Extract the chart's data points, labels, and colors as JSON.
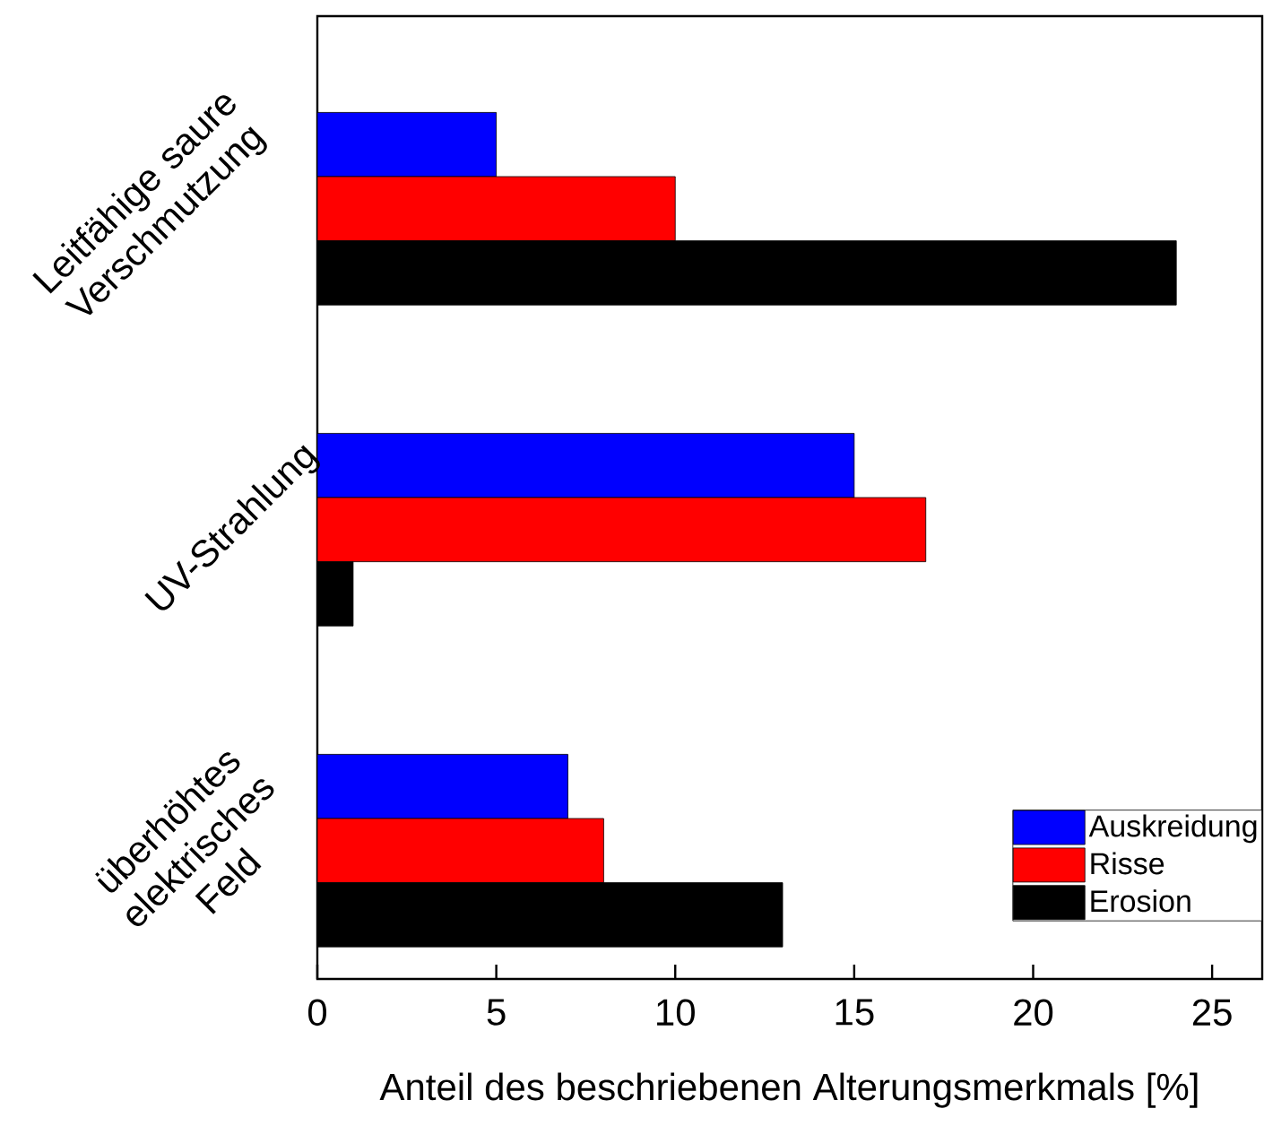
{
  "chart_data": {
    "type": "bar",
    "orientation": "horizontal",
    "xlabel": "Anteil des beschriebenen Alterungsmerkmals [%]",
    "categories": [
      "Leitfähige saure Verschmutzung",
      "UV-Strahlung",
      "überhöhtes elektrisches Feld"
    ],
    "series": [
      {
        "name": "Auskreidung",
        "color": "#0000ff",
        "values": [
          5,
          15,
          7
        ]
      },
      {
        "name": "Risse",
        "color": "#ff0000",
        "values": [
          10,
          17,
          8
        ]
      },
      {
        "name": "Erosion",
        "color": "#000000",
        "values": [
          24,
          1,
          13
        ]
      }
    ],
    "xlim": [
      0,
      26.4
    ],
    "xticks": [
      0,
      5,
      10,
      15,
      20,
      25
    ],
    "grid": false,
    "legend": "bottom right"
  }
}
